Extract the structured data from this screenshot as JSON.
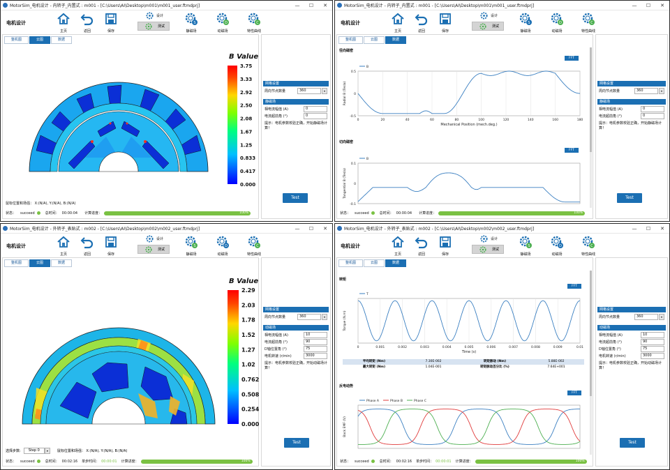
{
  "windows": [
    {
      "title": "MotorSim_电机设计 - 内转子_内置式 : m001 - [C:\\Users\\AI\\Desktop\\m001\\m001_user.ftmdprj]",
      "app_title": "电机设计",
      "toolbar": {
        "home": "主页",
        "back": "返回",
        "save": "保存",
        "design": "设计",
        "test": "测试",
        "static": "静磁场",
        "dynamic": "动磁场",
        "curve": "特性曲线"
      },
      "tabs": [
        "整机图",
        "云图",
        "数据"
      ],
      "active_tab": 1,
      "colorbar": {
        "title": "B Value",
        "ticks": [
          "3.75",
          "3.33",
          "2.92",
          "2.50",
          "2.08",
          "1.67",
          "1.25",
          "0.833",
          "0.417",
          "0.000"
        ]
      },
      "coords": "鼠标位置和场强：  X:(N/A), Y:(N/A), B:(N/A)",
      "status": {
        "label": "状态：",
        "value": "succeed",
        "total_label": "总时间：",
        "total": "00:00:04",
        "progress_label": "计算进度：",
        "progress": "100%"
      },
      "panel": {
        "grid_header": "网格设置",
        "grid_label": "周向节点数量",
        "grid_value": "360",
        "field_header": "静磁场",
        "fields": [
          {
            "label": "相电流幅值 (A)",
            "value": "0"
          },
          {
            "label": "电流超前角 (°)",
            "value": "0"
          }
        ],
        "hint": "提示：电机参数校验正确，开始静磁场计算！",
        "test_label": "Test"
      }
    },
    {
      "title": "MotorSim_电机设计 - 内转子_内置式 : m001 - [C:\\Users\\AI\\Desktop\\m001\\m001_user.ftmdprj]",
      "app_title": "电机设计",
      "toolbar": {
        "home": "主页",
        "back": "返回",
        "save": "保存",
        "design": "设计",
        "test": "测试",
        "static": "静磁场",
        "dynamic": "动磁场",
        "curve": "特性曲线"
      },
      "tabs": [
        "整机图",
        "云图",
        "数据"
      ],
      "active_tab": 2,
      "plot1": {
        "title": "径向磁密",
        "fft": "FFT",
        "legend": "B",
        "ylabel": "Radial B (Tesla)",
        "xlabel": "Mechanical Position (mech.deg.)",
        "xticks": [
          "0",
          "20",
          "40",
          "60",
          "80",
          "100",
          "120",
          "140",
          "160",
          "180"
        ],
        "yticks": [
          "0.5",
          "0",
          "-0.5"
        ]
      },
      "plot2": {
        "title": "切向磁密",
        "fft": "FFT",
        "legend": "B",
        "ylabel": "Tangential B (Tesla)",
        "yticks": [
          "0.1",
          "0",
          "-0.1"
        ]
      },
      "status": {
        "label": "状态：",
        "value": "succeed",
        "total_label": "总时间：",
        "total": "00:00:04",
        "progress_label": "计算进度：",
        "progress": "100%"
      },
      "panel": {
        "grid_header": "网格设置",
        "grid_label": "周向节点数量",
        "grid_value": "360",
        "field_header": "静磁场",
        "fields": [
          {
            "label": "相电流幅值 (A)",
            "value": "0"
          },
          {
            "label": "电流超前角 (°)",
            "value": "0"
          }
        ],
        "hint": "提示：电机参数校验正确，开始静磁场计算！",
        "test_label": "Test"
      }
    },
    {
      "title": "MotorSim_电机设计 - 外转子_表贴式 : m002 - [C:\\Users\\AI\\Desktop\\m002\\m002_user.ftmdprj]",
      "app_title": "电机设计",
      "toolbar": {
        "home": "主页",
        "back": "返回",
        "save": "保存",
        "design": "设计",
        "test": "测试",
        "static": "静磁场",
        "dynamic": "动磁场",
        "curve": "特性曲线"
      },
      "tabs": [
        "整机图",
        "云图",
        "数据"
      ],
      "active_tab": 1,
      "colorbar": {
        "title": "B Value",
        "ticks": [
          "2.29",
          "2.03",
          "1.78",
          "1.52",
          "1.27",
          "1.02",
          "0.762",
          "0.508",
          "0.254",
          "0.000"
        ]
      },
      "step_label": "选择步数:",
      "step_value": "Step 0",
      "coords": "鼠标位置和场强：  X:(N/A), Y:(N/A), B:(N/A)",
      "status": {
        "label": "状态：",
        "value": "succeed",
        "total_label": "总时间：",
        "total": "00:02:16",
        "step_label": "单步时间：",
        "step": "00:00:01",
        "progress_label": "计算进度：",
        "progress": "100%"
      },
      "panel": {
        "grid_header": "网格设置",
        "grid_label": "周向节点数量",
        "grid_value": "360",
        "field_header": "动磁场",
        "fields": [
          {
            "label": "相电流幅值 (A)",
            "value": "10"
          },
          {
            "label": "电流超前角 (°)",
            "value": "90"
          },
          {
            "label": "D轴位置角 (°)",
            "value": "75"
          },
          {
            "label": "电机转速 (r/min)",
            "value": "3000"
          }
        ],
        "hint": "提示：电机参数校验正确，开始动磁场计算！",
        "test_label": "Test"
      }
    },
    {
      "title": "MotorSim_电机设计 - 外转子_表贴式 : m002 - [C:\\Users\\AI\\Desktop\\m002\\m002_user.ftmdprj]",
      "app_title": "电机设计",
      "toolbar": {
        "home": "主页",
        "back": "返回",
        "save": "保存",
        "design": "设计",
        "test": "测试",
        "static": "静磁场",
        "dynamic": "动磁场",
        "curve": "特性曲线"
      },
      "tabs": [
        "整机图",
        "云图",
        "数据"
      ],
      "active_tab": 2,
      "plot1": {
        "title": "转矩",
        "fft": "FFT",
        "legend": "T",
        "ylabel": "Torque (N.m)",
        "xlabel": "Time (s)",
        "xticks": [
          "0",
          "0.001",
          "0.002",
          "0.003",
          "0.004",
          "0.005",
          "0.006",
          "0.007",
          "0.008",
          "0.009",
          "0.01"
        ]
      },
      "table": [
        {
          "k1": "平均转矩 (Nm)",
          "v1": "7.30E-002",
          "k2": "转矩脉动 (Nm)",
          "v2": "5.88E-002"
        },
        {
          "k1": "最大转矩 (Nm)",
          "v1": "1.04E-001",
          "k2": "转矩脉动百分比 (%)",
          "v2": "7.64E+001"
        }
      ],
      "plot2": {
        "title": "反电动势",
        "fft": "FFT",
        "legend": [
          "Phase A",
          "Phase B",
          "Phase C"
        ],
        "ylabel": "Back EMF (V)"
      },
      "status": {
        "label": "状态：",
        "value": "succeed",
        "total_label": "总时间：",
        "total": "00:02:16",
        "step_label": "单步时间：",
        "step": "00:00:01",
        "progress_label": "计算进度：",
        "progress": "100%"
      },
      "panel": {
        "grid_header": "网格设置",
        "grid_label": "周向节点数量",
        "grid_value": "360",
        "field_header": "动磁场",
        "fields": [
          {
            "label": "相电流幅值 (A)",
            "value": "10"
          },
          {
            "label": "电流超前角 (°)",
            "value": "90"
          },
          {
            "label": "D轴位置角 (°)",
            "value": "75"
          },
          {
            "label": "电机转速 (r/min)",
            "value": "3000"
          }
        ],
        "hint": "提示：电机参数校验正确，开始动磁场计算！",
        "test_label": "Test"
      }
    }
  ],
  "colors": {
    "accent": "#1b6fb3",
    "progress": "#7ac143",
    "plot_line": "#3a7fc1",
    "phase_a": "#3a7fc1",
    "phase_b": "#e03b3b",
    "phase_c": "#4caf50"
  }
}
